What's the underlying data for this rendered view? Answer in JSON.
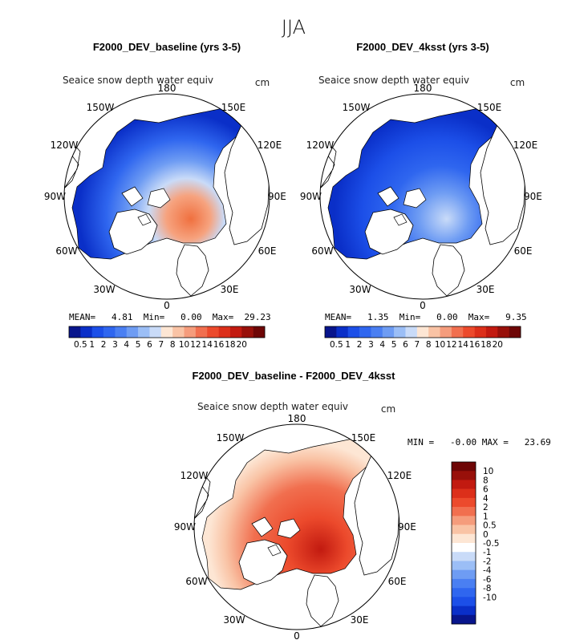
{
  "season": "JJA",
  "colors": {
    "abs_scale": [
      "#08158c",
      "#0a2fc8",
      "#1c4fe8",
      "#2f66ef",
      "#4a7ff2",
      "#6e9cf3",
      "#9bbef6",
      "#c9dbf8",
      "#fde6d4",
      "#f9c3a5",
      "#f59c7c",
      "#f16f4f",
      "#ec4a2c",
      "#dc2f1a",
      "#c21a10",
      "#98100a",
      "#6e0606"
    ],
    "diff_scale": [
      "#6e0606",
      "#98100a",
      "#c21a10",
      "#dc2f1a",
      "#ec4a2c",
      "#f16f4f",
      "#f59c7c",
      "#f9c3a5",
      "#fde6d4",
      "#ffffff",
      "#c9dbf8",
      "#9bbef6",
      "#6e9cf3",
      "#4a7ff2",
      "#2f66ef",
      "#1c4fe8",
      "#0a2fc8",
      "#08158c"
    ],
    "land": "#ffffff",
    "outline": "#000000"
  },
  "chart_data": [
    {
      "type": "heatmap",
      "title": "F2000_DEV_baseline (yrs 3-5)",
      "variable": "Seaice snow depth water equiv",
      "units": "cm",
      "stats": {
        "mean": "4.81",
        "min": "0.00",
        "max": "29.23"
      },
      "stats_text": "MEAN=   4.81  Min=   0.00  Max=  29.23",
      "colorbar_ticks": [
        "0.5",
        "1",
        "2",
        "3",
        "4",
        "5",
        "6",
        "7",
        "8",
        "10",
        "12",
        "14",
        "16",
        "18",
        "20"
      ],
      "field_intensity": 1.0,
      "longitude_labels": {
        "top": "180",
        "bottom": "0",
        "ul1": "150W",
        "ur1": "150E",
        "ul2": "120W",
        "ur2": "120E",
        "l": "90W",
        "r": "90E",
        "ll2": "60W",
        "lr2": "60E",
        "ll1": "30W",
        "lr1": "30E"
      }
    },
    {
      "type": "heatmap",
      "title": "F2000_DEV_4ksst (yrs 3-5)",
      "variable": "Seaice snow depth water equiv",
      "units": "cm",
      "stats": {
        "mean": "1.35",
        "min": "0.00",
        "max": "9.35"
      },
      "stats_text": "MEAN=   1.35  Min=   0.00  Max=   9.35",
      "colorbar_ticks": [
        "0.5",
        "1",
        "2",
        "3",
        "4",
        "5",
        "6",
        "7",
        "8",
        "10",
        "12",
        "14",
        "16",
        "18",
        "20"
      ],
      "field_intensity": 0.3,
      "longitude_labels": {
        "top": "180",
        "bottom": "0",
        "ul1": "150W",
        "ur1": "150E",
        "ul2": "120W",
        "ur2": "120E",
        "l": "90W",
        "r": "90E",
        "ll2": "60W",
        "lr2": "60E",
        "ll1": "30W",
        "lr1": "30E"
      }
    },
    {
      "type": "heatmap",
      "title": "F2000_DEV_baseline - F2000_DEV_4ksst",
      "variable": "Seaice snow depth water equiv",
      "units": "cm",
      "stats": {
        "min": "-0.00",
        "max": "23.69"
      },
      "stats_text": "MIN =   -0.00 MAX =   23.69",
      "colorbar_ticks": [
        "10",
        "8",
        "6",
        "4",
        "2",
        "1",
        "0.5",
        "0",
        "-0.5",
        "-1",
        "-2",
        "-4",
        "-6",
        "-8",
        "-10"
      ],
      "longitude_labels": {
        "top": "180",
        "bottom": "0",
        "ul1": "150W",
        "ur1": "150E",
        "ul2": "120W",
        "ur2": "120E",
        "l": "90W",
        "r": "90E",
        "ll2": "60W",
        "lr2": "60E",
        "ll1": "30W",
        "lr1": "30E"
      }
    }
  ]
}
